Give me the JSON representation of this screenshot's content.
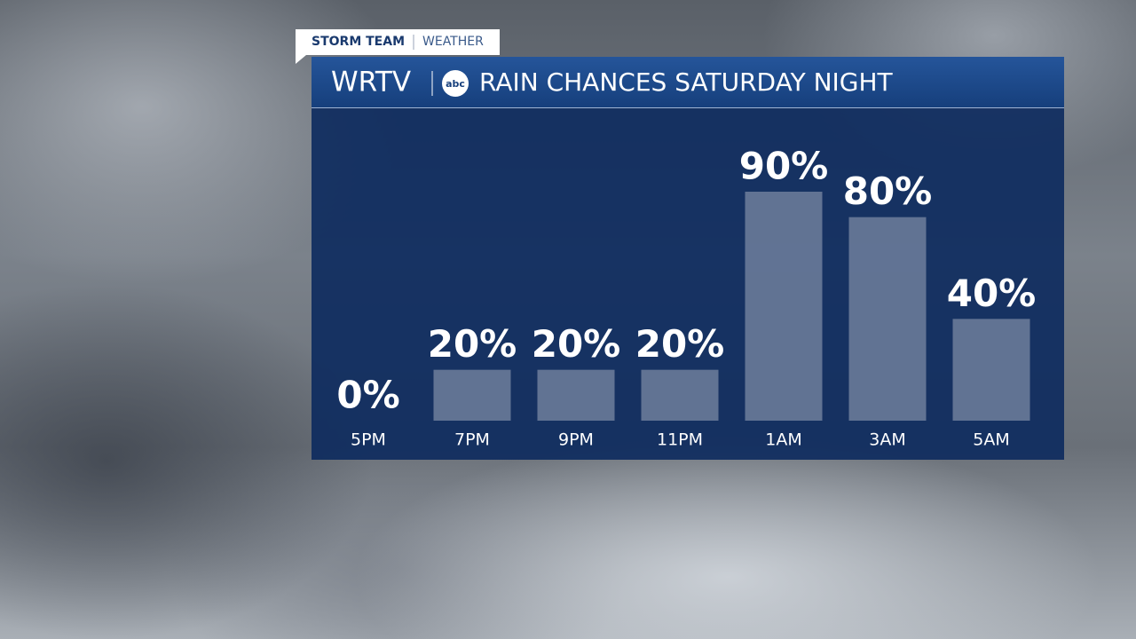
{
  "brand": {
    "tag": "STORM TEAM",
    "section": "WEATHER",
    "station": "WRTV",
    "network": "abc"
  },
  "chart_data": {
    "type": "bar",
    "title": "RAIN CHANCES SATURDAY NIGHT",
    "categories": [
      "5PM",
      "7PM",
      "9PM",
      "11PM",
      "1AM",
      "3AM",
      "5AM"
    ],
    "values": [
      0,
      20,
      20,
      20,
      90,
      80,
      40
    ],
    "value_labels": [
      "0%",
      "20%",
      "20%",
      "20%",
      "90%",
      "80%",
      "40%"
    ],
    "color": "#6f7f9c"
  }
}
